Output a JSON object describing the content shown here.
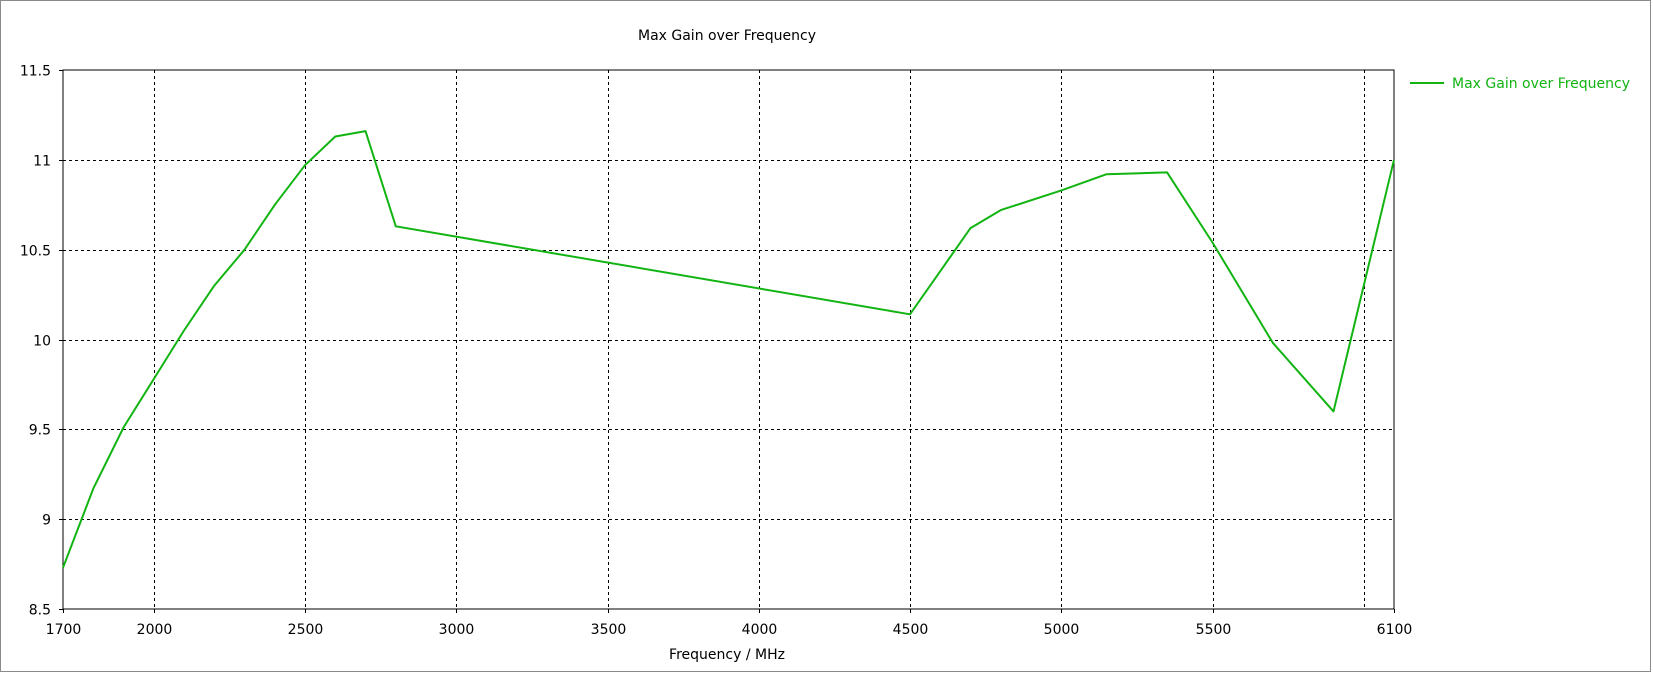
{
  "chart_data": {
    "type": "line",
    "title": "Max Gain over Frequency",
    "xlabel": "Frequency / MHz",
    "ylabel": "",
    "xlim": [
      1700,
      6100
    ],
    "ylim": [
      8.5,
      11.5
    ],
    "x_ticks": [
      1700,
      2000,
      2500,
      3000,
      3500,
      4000,
      4500,
      5000,
      5500,
      6100
    ],
    "x_grid": [
      2000,
      2500,
      3000,
      3500,
      4000,
      4500,
      5000,
      5500,
      6000
    ],
    "y_ticks": [
      8.5,
      9,
      9.5,
      10,
      10.5,
      11,
      11.5
    ],
    "y_tick_labels": [
      "8.5",
      "9",
      "9.5",
      "10",
      "10.5",
      "11",
      "11.5"
    ],
    "grid": true,
    "legend_position": "top-right",
    "series": [
      {
        "name": "Max Gain over Frequency",
        "color": "#12b412",
        "x": [
          1700,
          1800,
          1900,
          2000,
          2100,
          2200,
          2300,
          2400,
          2500,
          2600,
          2700,
          2800,
          4500,
          4700,
          4800,
          5000,
          5150,
          5350,
          5500,
          5700,
          5900,
          6100
        ],
        "y": [
          8.73,
          9.17,
          9.51,
          9.78,
          10.05,
          10.3,
          10.5,
          10.75,
          10.97,
          11.13,
          11.16,
          10.63,
          10.14,
          10.62,
          10.72,
          10.83,
          10.92,
          10.93,
          10.54,
          9.98,
          9.6,
          11.0
        ]
      }
    ]
  }
}
